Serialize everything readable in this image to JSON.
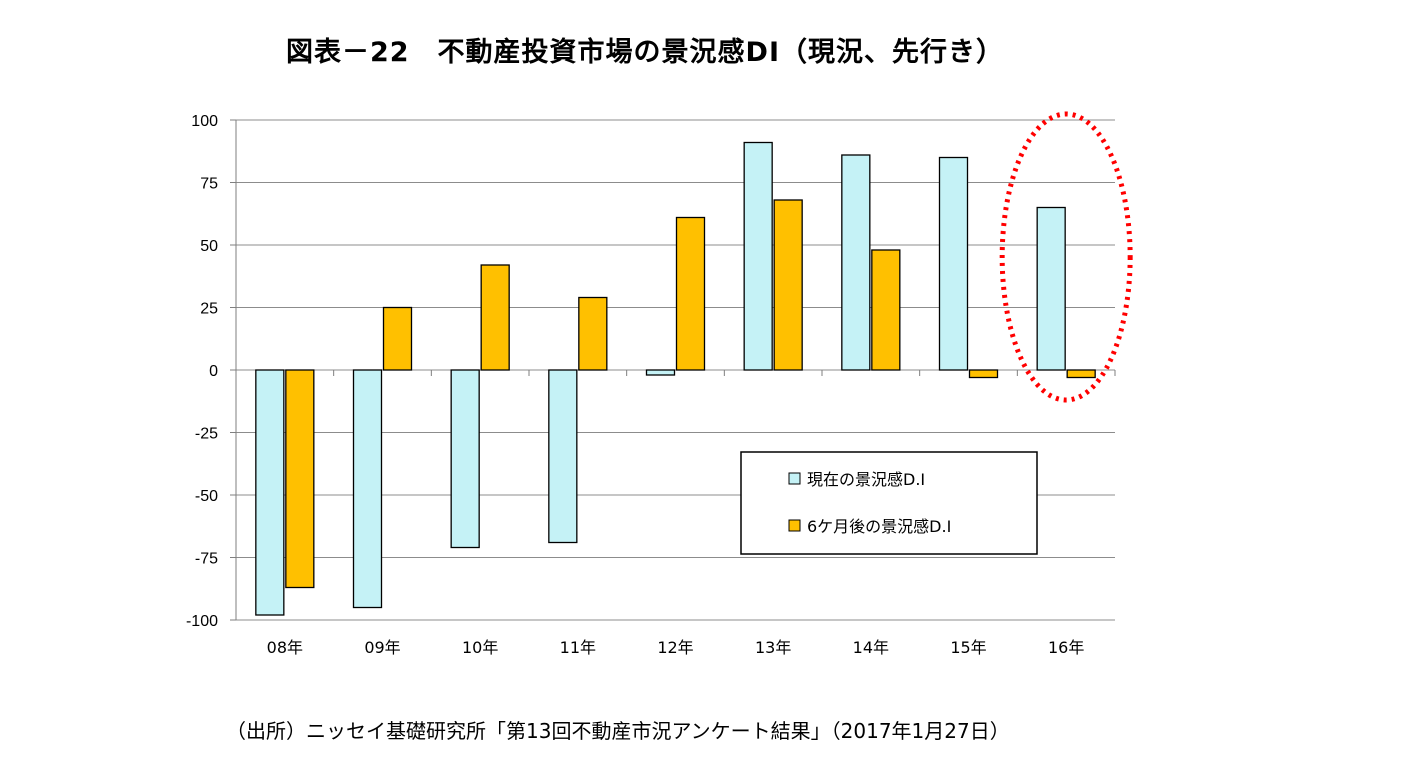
{
  "title": "図表－22　不動産投資市場の景況感DI（現況、先行き）",
  "source": "（出所）ニッセイ基礎研究所「第13回不動産市況アンケート結果」（2017年1月27日）",
  "chart_data": {
    "type": "bar",
    "categories": [
      "08年",
      "09年",
      "10年",
      "11年",
      "12年",
      "13年",
      "14年",
      "15年",
      "16年"
    ],
    "series": [
      {
        "name": "現在の景況感D.I",
        "color": "#c5f2f6",
        "values": [
          -98,
          -95,
          -71,
          -69,
          -2,
          91,
          86,
          85,
          65
        ]
      },
      {
        "name": "6ケ月後の景況感D.I",
        "color": "#ffc000",
        "values": [
          -87,
          25,
          42,
          29,
          61,
          68,
          48,
          -3,
          -3
        ]
      }
    ],
    "ylim": [
      -100,
      100
    ],
    "yticks": [
      100,
      75,
      50,
      25,
      0,
      -25,
      -50,
      -75,
      -100
    ],
    "grid": true,
    "legend": "lower-right inside plot",
    "highlight": {
      "category": "16年",
      "shape": "dotted-ellipse",
      "color": "#ff0000"
    },
    "xlabel": "",
    "ylabel": ""
  }
}
